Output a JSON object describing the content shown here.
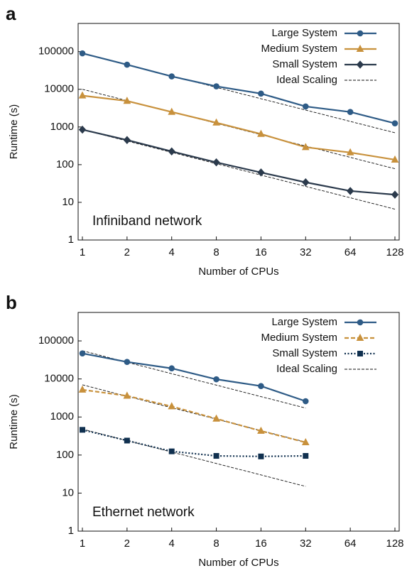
{
  "chart_data": [
    {
      "type": "line",
      "panel": "a",
      "annotation": "Infiniband network",
      "x_label": "Number of CPUs",
      "y_label": "Runtime (s)",
      "log_x": 2,
      "log_y": 10,
      "x": [
        1,
        2,
        4,
        8,
        16,
        32,
        64,
        128
      ],
      "xlim": [
        1,
        128
      ],
      "xticks": [
        1,
        2,
        4,
        8,
        16,
        32,
        64,
        128
      ],
      "ylim": [
        1,
        560000
      ],
      "yticks": [
        1,
        10,
        100,
        1000,
        10000,
        100000
      ],
      "legend": "upper right",
      "series": [
        {
          "name": "Large System",
          "color": "#2e5b86",
          "marker": "circle",
          "dash": "solid",
          "values": [
            90000,
            45000,
            22000,
            12000,
            7700,
            3500,
            2500,
            1250
          ]
        },
        {
          "name": "Medium System",
          "color": "#c8913c",
          "marker": "triangle",
          "dash": "solid",
          "values": [
            6800,
            4900,
            2500,
            1300,
            650,
            290,
            210,
            135
          ]
        },
        {
          "name": "Small System",
          "color": "#2b3a4c",
          "marker": "diamond",
          "dash": "solid",
          "values": [
            850,
            450,
            225,
            115,
            62,
            34,
            20,
            16
          ]
        }
      ],
      "ideal": {
        "name": "Ideal Scaling",
        "color": "#111111",
        "lines": [
          {
            "x": [
              1,
              128
            ],
            "values": [
              90000,
              703
            ]
          },
          {
            "x": [
              1,
              128
            ],
            "values": [
              10000,
              78
            ]
          },
          {
            "x": [
              1,
              128
            ],
            "values": [
              850,
              6.6
            ]
          }
        ]
      }
    },
    {
      "type": "line",
      "panel": "b",
      "annotation": "Ethernet network",
      "x_label": "Number of CPUs",
      "y_label": "Runtime (s)",
      "log_x": 2,
      "log_y": 10,
      "x": [
        1,
        2,
        4,
        8,
        16,
        32
      ],
      "xlim": [
        1,
        128
      ],
      "xticks": [
        1,
        2,
        4,
        8,
        16,
        32,
        64,
        128
      ],
      "ylim": [
        1,
        560000
      ],
      "yticks": [
        1,
        10,
        100,
        1000,
        10000,
        100000
      ],
      "legend": "upper right",
      "series": [
        {
          "name": "Large System",
          "color": "#2e5b86",
          "marker": "circle",
          "dash": "solid",
          "values": [
            47000,
            28000,
            19000,
            9800,
            6500,
            2600
          ]
        },
        {
          "name": "Medium System",
          "color": "#c8913c",
          "marker": "triangle",
          "dash": "dashed",
          "values": [
            5200,
            3600,
            1900,
            900,
            430,
            215
          ]
        },
        {
          "name": "Small System",
          "color": "#10304f",
          "marker": "square",
          "dash": "dotted",
          "values": [
            460,
            240,
            125,
            95,
            92,
            95
          ]
        }
      ],
      "ideal": {
        "name": "Ideal Scaling",
        "color": "#111111",
        "lines": [
          {
            "x": [
              1,
              32
            ],
            "values": [
              55000,
              1718
            ]
          },
          {
            "x": [
              1,
              32
            ],
            "values": [
              7000,
              220
            ]
          },
          {
            "x": [
              1,
              32
            ],
            "values": [
              480,
              15
            ]
          }
        ]
      }
    }
  ]
}
